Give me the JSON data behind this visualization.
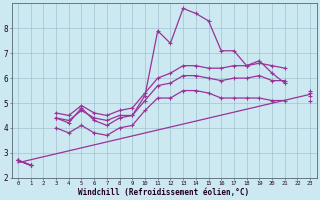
{
  "xlabel": "Windchill (Refroidissement éolien,°C)",
  "bg_color": "#cce8f0",
  "line_color": "#993399",
  "hours": [
    0,
    1,
    2,
    3,
    4,
    5,
    6,
    7,
    8,
    9,
    10,
    11,
    12,
    13,
    14,
    15,
    16,
    17,
    18,
    19,
    20,
    21,
    22,
    23
  ],
  "actual": [
    2.7,
    2.5,
    null,
    4.4,
    4.2,
    4.8,
    4.3,
    4.1,
    4.4,
    4.5,
    5.3,
    7.9,
    7.4,
    8.8,
    8.6,
    8.3,
    7.1,
    7.1,
    6.5,
    6.7,
    6.2,
    5.8,
    null,
    5.4
  ],
  "band_hi": [
    2.7,
    2.5,
    null,
    4.6,
    4.5,
    4.9,
    4.6,
    4.5,
    4.7,
    4.8,
    5.4,
    6.0,
    6.2,
    6.5,
    6.5,
    6.4,
    6.4,
    6.5,
    6.5,
    6.6,
    6.5,
    6.4,
    null,
    5.5
  ],
  "band_mid": [
    2.7,
    2.5,
    null,
    4.4,
    4.3,
    4.7,
    4.4,
    4.3,
    4.5,
    4.5,
    5.1,
    5.7,
    5.8,
    6.1,
    6.1,
    6.0,
    5.9,
    6.0,
    6.0,
    6.1,
    5.9,
    5.9,
    null,
    5.3
  ],
  "band_lo": [
    2.7,
    2.5,
    null,
    4.0,
    3.8,
    4.1,
    3.8,
    3.7,
    4.0,
    4.1,
    4.7,
    5.2,
    5.2,
    5.5,
    5.5,
    5.4,
    5.2,
    5.2,
    5.2,
    5.2,
    5.1,
    5.1,
    null,
    5.1
  ],
  "trend_x": [
    0,
    23
  ],
  "trend_y": [
    2.6,
    5.35
  ],
  "ylim": [
    2,
    9
  ],
  "xlim": [
    -0.5,
    23.5
  ]
}
